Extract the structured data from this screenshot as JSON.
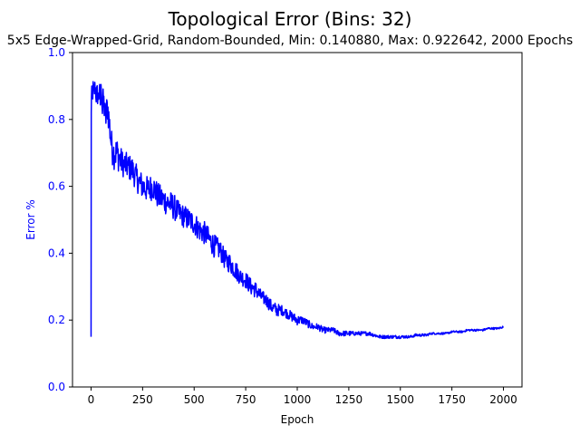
{
  "chart_data": {
    "type": "line",
    "title": "Topological Error (Bins: 32)",
    "subtitle": "5x5 Edge-Wrapped-Grid, Random-Bounded, Min: 0.140880, Max: 0.922642, 2000 Epochs",
    "xlabel": "Epoch",
    "ylabel": "Error %",
    "xlim": [
      -90,
      2090
    ],
    "ylim": [
      0,
      1
    ],
    "xticks": [
      0,
      250,
      500,
      750,
      1000,
      1250,
      1500,
      1750,
      2000
    ],
    "xtick_labels": [
      "0",
      "250",
      "500",
      "750",
      "1000",
      "1250",
      "1500",
      "1750",
      "2000"
    ],
    "yticks": [
      0.0,
      0.2,
      0.4,
      0.6,
      0.8,
      1.0
    ],
    "ytick_labels": [
      "0.0",
      "0.2",
      "0.4",
      "0.6",
      "0.8",
      "1.0"
    ],
    "grid": false,
    "legend": "none",
    "colors": {
      "line": "#0000ff",
      "y_axis_text": "#0000ff",
      "x_axis_text": "#000000",
      "axes": "#000000"
    },
    "series": [
      {
        "x": [
          0,
          1,
          2,
          5,
          10,
          15,
          20,
          25,
          30,
          35,
          40,
          45,
          50,
          55,
          60,
          70,
          80,
          90,
          100,
          110,
          125,
          150,
          175,
          200,
          225,
          250,
          275,
          300,
          325,
          350,
          375,
          400,
          425,
          450,
          475,
          500,
          525,
          550,
          575,
          600,
          625,
          650,
          675,
          700,
          725,
          750,
          775,
          800,
          825,
          850,
          875,
          900,
          925,
          950,
          975,
          1000,
          1025,
          1050,
          1075,
          1100,
          1125,
          1150,
          1175,
          1200,
          1225,
          1250,
          1275,
          1300,
          1325,
          1350,
          1375,
          1400,
          1425,
          1450,
          1475,
          1500,
          1525,
          1550,
          1575,
          1600,
          1625,
          1650,
          1675,
          1700,
          1725,
          1750,
          1775,
          1800,
          1825,
          1850,
          1875,
          1900,
          1925,
          1950,
          1975,
          2000
        ],
        "values": [
          0.15,
          0.82,
          0.86,
          0.87,
          0.89,
          0.88,
          0.9,
          0.87,
          0.88,
          0.86,
          0.89,
          0.85,
          0.9,
          0.83,
          0.86,
          0.8,
          0.84,
          0.78,
          0.72,
          0.7,
          0.7,
          0.67,
          0.66,
          0.65,
          0.62,
          0.6,
          0.59,
          0.6,
          0.57,
          0.56,
          0.55,
          0.54,
          0.52,
          0.51,
          0.5,
          0.49,
          0.47,
          0.46,
          0.44,
          0.42,
          0.41,
          0.38,
          0.37,
          0.35,
          0.33,
          0.32,
          0.3,
          0.29,
          0.27,
          0.26,
          0.24,
          0.23,
          0.23,
          0.22,
          0.21,
          0.2,
          0.2,
          0.19,
          0.18,
          0.18,
          0.17,
          0.17,
          0.17,
          0.16,
          0.16,
          0.16,
          0.16,
          0.16,
          0.16,
          0.16,
          0.155,
          0.15,
          0.15,
          0.15,
          0.15,
          0.15,
          0.15,
          0.15,
          0.155,
          0.155,
          0.155,
          0.16,
          0.16,
          0.16,
          0.16,
          0.165,
          0.165,
          0.165,
          0.17,
          0.17,
          0.17,
          0.17,
          0.175,
          0.175,
          0.175,
          0.18
        ],
        "noise": [
          0,
          0,
          0.03,
          0.04,
          0.03,
          0.03,
          0.03,
          0.03,
          0.03,
          0.04,
          0.03,
          0.04,
          0.03,
          0.05,
          0.04,
          0.05,
          0.05,
          0.05,
          0.05,
          0.05,
          0.05,
          0.04,
          0.04,
          0.04,
          0.04,
          0.04,
          0.04,
          0.04,
          0.04,
          0.04,
          0.04,
          0.04,
          0.035,
          0.035,
          0.035,
          0.035,
          0.035,
          0.035,
          0.035,
          0.035,
          0.03,
          0.03,
          0.03,
          0.03,
          0.025,
          0.025,
          0.025,
          0.025,
          0.02,
          0.02,
          0.02,
          0.02,
          0.015,
          0.015,
          0.015,
          0.015,
          0.012,
          0.012,
          0.01,
          0.01,
          0.01,
          0.008,
          0.008,
          0.008,
          0.008,
          0.008,
          0.006,
          0.006,
          0.006,
          0.006,
          0.006,
          0.005,
          0.005,
          0.005,
          0.005,
          0.005,
          0.004,
          0.004,
          0.004,
          0.004,
          0.004,
          0.003,
          0.003,
          0.003,
          0.003,
          0.003,
          0.003,
          0.003,
          0.003,
          0.003,
          0.003,
          0.003,
          0.003,
          0.003,
          0.003,
          0.003
        ]
      }
    ]
  }
}
